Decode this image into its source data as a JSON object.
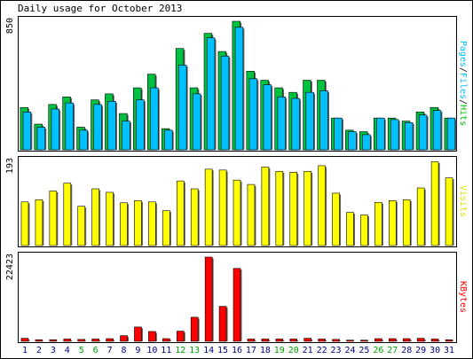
{
  "chart_data": {
    "type": "bar",
    "title": "Daily usage for October 2013",
    "categories": [
      "1",
      "2",
      "3",
      "4",
      "5",
      "6",
      "7",
      "8",
      "9",
      "10",
      "11",
      "12",
      "13",
      "14",
      "15",
      "16",
      "17",
      "18",
      "19",
      "20",
      "21",
      "22",
      "23",
      "24",
      "25",
      "26",
      "27",
      "28",
      "29",
      "30",
      "31"
    ],
    "weekend_days": [
      "5",
      "6",
      "12",
      "13",
      "19",
      "20",
      "26",
      "27"
    ],
    "weekend_color": "#00a000",
    "weekday_color": "#000080",
    "panels": [
      {
        "id": "hits_files_pages",
        "max_label": "850",
        "ymax": 850,
        "side_label_parts": [
          {
            "text": "Pages",
            "color": "#00c0ff"
          },
          {
            "text": "/",
            "color": "#000000"
          },
          {
            "text": "Files",
            "color": "#00c0ff"
          },
          {
            "text": "/",
            "color": "#000000"
          },
          {
            "text": "Hits",
            "color": "#00c000"
          }
        ],
        "series": [
          {
            "name": "Hits",
            "color": "#00c040",
            "values": [
              280,
              170,
              300,
              350,
              150,
              330,
              370,
              240,
              410,
              500,
              140,
              670,
              410,
              770,
              650,
              850,
              520,
              460,
              410,
              380,
              460,
              460,
              210,
              130,
              120,
              210,
              210,
              190,
              250,
              280,
              210
            ]
          },
          {
            "name": "Files",
            "color": "#00c0ff",
            "values": [
              250,
              150,
              270,
              310,
              130,
              300,
              320,
              190,
              330,
              410,
              130,
              560,
              370,
              740,
              620,
              810,
              470,
              430,
              350,
              340,
              380,
              390,
              210,
              120,
              100,
              210,
              200,
              180,
              230,
              260,
              210
            ]
          },
          {
            "name": "Pages",
            "color": "#0080ff",
            "values": [
              0,
              0,
              0,
              0,
              0,
              0,
              0,
              0,
              0,
              0,
              0,
              0,
              0,
              0,
              0,
              0,
              0,
              0,
              0,
              0,
              0,
              0,
              0,
              0,
              0,
              0,
              0,
              0,
              0,
              0,
              0
            ]
          }
        ]
      },
      {
        "id": "visits",
        "max_label": "193",
        "ymax": 193,
        "side_label_parts": [
          {
            "text": "Visits",
            "color": "#e0e000"
          }
        ],
        "series": [
          {
            "name": "Visits",
            "color": "#ffff00",
            "values": [
              100,
              105,
              125,
              143,
              90,
              130,
              122,
              98,
              103,
              100,
              80,
              148,
              130,
              175,
              173,
              150,
              140,
              180,
              170,
              168,
              170,
              183,
              120,
              76,
              70,
              99,
              103,
              105,
              132,
              192,
              155
            ]
          }
        ]
      },
      {
        "id": "kbytes",
        "max_label": "22423",
        "ymax": 22423,
        "side_label_parts": [
          {
            "text": "KBytes",
            "color": "#ff0000"
          }
        ],
        "series": [
          {
            "name": "KBytes",
            "color": "#ff0000",
            "values": [
              800,
              400,
              400,
              600,
              500,
              600,
              700,
              1500,
              3800,
              2600,
              700,
              2700,
              6400,
              22423,
              9300,
              19400,
              600,
              600,
              600,
              600,
              800,
              600,
              500,
              300,
              300,
              700,
              700,
              700,
              800,
              600,
              400
            ]
          }
        ]
      }
    ]
  }
}
